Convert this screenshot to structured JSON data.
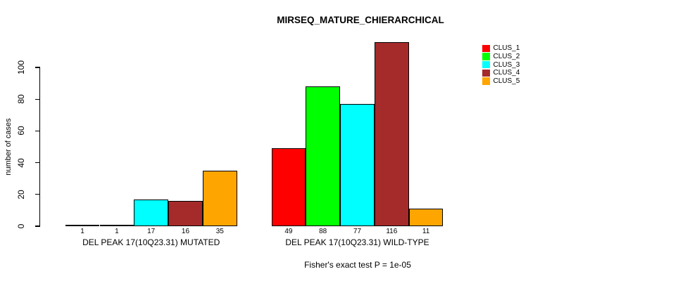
{
  "chart_data": {
    "type": "bar",
    "title": "MIRSEQ_MATURE_CHIERARCHICAL",
    "ylabel": "number of cases",
    "xlabel": "",
    "ylim": [
      0,
      100
    ],
    "yticks": [
      0,
      20,
      40,
      60,
      80,
      100
    ],
    "grid": false,
    "legend_position": "top-right",
    "categories": [
      "DEL PEAK 17(10Q23.31) MUTATED",
      "DEL PEAK 17(10Q23.31) WILD-TYPE"
    ],
    "series": [
      {
        "name": "CLUS_1",
        "color": "#FF0000",
        "values": [
          1,
          49
        ]
      },
      {
        "name": "CLUS_2",
        "color": "#00FF00",
        "values": [
          1,
          88
        ]
      },
      {
        "name": "CLUS_3",
        "color": "#00FFFF",
        "values": [
          17,
          77
        ]
      },
      {
        "name": "CLUS_4",
        "color": "#A52A2A",
        "values": [
          16,
          116
        ]
      },
      {
        "name": "CLUS_5",
        "color": "#FFA500",
        "values": [
          35,
          11
        ]
      }
    ],
    "bar_value_labels_shown": true,
    "annotation": "Fisher's exact test P = 1e-05"
  },
  "colors": {
    "background": "#FFFFFF",
    "axis": "#000000",
    "bar_border": "#000000"
  }
}
